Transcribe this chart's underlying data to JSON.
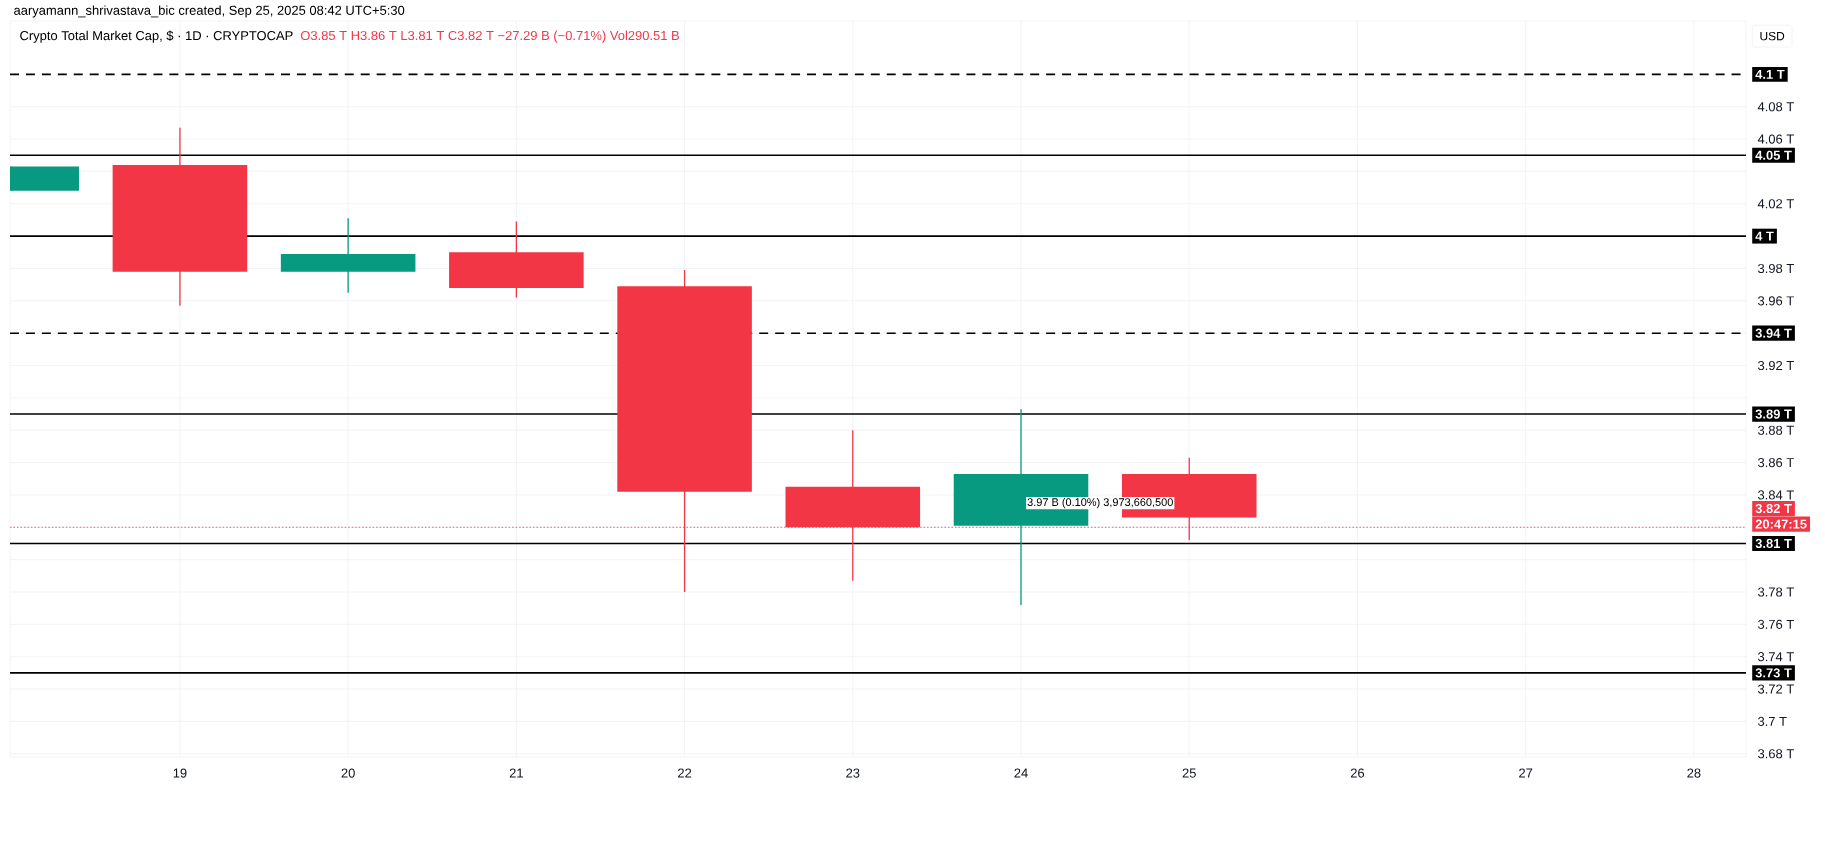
{
  "chart_data": {
    "type": "candlestick",
    "title": "Crypto Total Market Cap, $ · 1D · CRYPTOCAP",
    "subtitle": "O3.85 T  H3.86 T  L3.81 T  C3.82 T  −27.29 B (−0.71%)  Vol290.51 B",
    "x": [
      18,
      19,
      20,
      21,
      22,
      23,
      24,
      25
    ],
    "ohlc": [
      [
        4.028,
        4.043,
        4.028,
        4.043
      ],
      [
        4.044,
        4.067,
        3.957,
        3.978
      ],
      [
        3.978,
        4.011,
        3.965,
        3.989
      ],
      [
        3.99,
        4.009,
        3.962,
        3.968
      ],
      [
        3.969,
        3.979,
        3.78,
        3.842
      ],
      [
        3.845,
        3.88,
        3.787,
        3.82
      ],
      [
        3.821,
        3.893,
        3.772,
        3.853
      ],
      [
        3.853,
        3.863,
        3.812,
        3.826
      ]
    ],
    "colors": [
      "#089981",
      "#f23645",
      "#089981",
      "#f23645",
      "#f23645",
      "#f23645",
      "#089981",
      "#f23645"
    ],
    "xlim": [
      17.99,
      28.31
    ],
    "ylim": [
      3.678,
      4.133
    ],
    "xticks": [
      19,
      20,
      21,
      22,
      23,
      24,
      25,
      26,
      27,
      28
    ],
    "yticks": [
      {
        "value": 3.68,
        "label": "3.68 T"
      },
      {
        "value": 3.7,
        "label": "3.7 T"
      },
      {
        "value": 3.72,
        "label": "3.72 T"
      },
      {
        "value": 3.74,
        "label": "3.74 T"
      },
      {
        "value": 3.76,
        "label": "3.76 T"
      },
      {
        "value": 3.78,
        "label": "3.78 T"
      },
      {
        "value": 3.8,
        "label": null
      },
      {
        "value": 3.82,
        "label": null
      },
      {
        "value": 3.84,
        "label": "3.84 T"
      },
      {
        "value": 3.86,
        "label": "3.86 T"
      },
      {
        "value": 3.88,
        "label": "3.88 T"
      },
      {
        "value": 3.9,
        "label": null
      },
      {
        "value": 3.92,
        "label": "3.92 T"
      },
      {
        "value": 3.94,
        "label": null
      },
      {
        "value": 3.96,
        "label": "3.96 T"
      },
      {
        "value": 3.98,
        "label": "3.98 T"
      },
      {
        "value": 4.0,
        "label": null
      },
      {
        "value": 4.02,
        "label": "4.02 T"
      },
      {
        "value": 4.04,
        "label": null
      },
      {
        "value": 4.06,
        "label": "4.06 T"
      },
      {
        "value": 4.08,
        "label": "4.08 T"
      }
    ],
    "grid": true,
    "ref_lines": [
      {
        "axis": "y",
        "value": 4.1,
        "label": "4.1 T",
        "color": "#000000",
        "line_style": "dashed"
      },
      {
        "axis": "y",
        "value": 4.05,
        "label": "4.05 T",
        "color": "#000000",
        "line_style": "solid"
      },
      {
        "axis": "y",
        "value": 4.0,
        "label": "4 T",
        "color": "#000000",
        "line_style": "solid"
      },
      {
        "axis": "y",
        "value": 3.94,
        "label": "3.94 T",
        "color": "#000000",
        "line_style": "dashed"
      },
      {
        "axis": "y",
        "value": 3.89,
        "label": "3.89 T",
        "color": "#000000",
        "line_style": "solid"
      },
      {
        "axis": "y",
        "value": 3.82,
        "label": "3.82 T",
        "color": "#f23645",
        "line_style": "dotted"
      },
      {
        "axis": "y",
        "value": 3.81,
        "label": "3.81 T",
        "color": "#000000",
        "line_style": "solid"
      },
      {
        "axis": "y",
        "value": 3.73,
        "label": "3.73 T",
        "color": "#000000",
        "line_style": "solid"
      }
    ],
    "annotations": [
      "aaryamann_shrivastava_bic created, Sep 25, 2025 08:42 UTC+5:30",
      "USD",
      "20:47:15",
      "3.97 B (0.10%) 3,973,660,500"
    ]
  }
}
